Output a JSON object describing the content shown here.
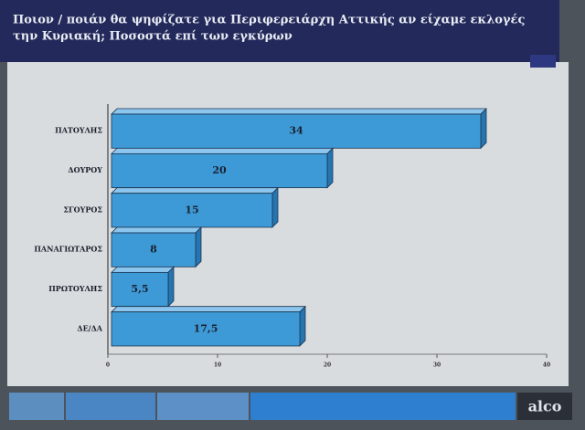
{
  "chart_data": {
    "type": "bar",
    "orientation": "horizontal",
    "title": "Ποιον / ποιάν θα ψηφίζατε για Περιφερειάρχη Αττικής αν είχαμε εκλογές την Κυριακή; Ποσοστά επί των εγκύρων",
    "title_lines": [
      "Ποιον / ποιάν θα ψηφίζατε για Περιφερειάρχη Αττικής αν είχαμε εκλογές",
      "την Κυριακή; Ποσοστά επί των εγκύρων"
    ],
    "categories": [
      "ΠΑΤΟΥΛΗΣ",
      "ΔΟΥΡΟΥ",
      "ΣΓΟΥΡΟΣ",
      "ΠΑΝΑΓΙΩΤΑΡΟΣ",
      "ΠΡΩΤΟΥΛΗΣ",
      "ΔΕ/ΔΑ"
    ],
    "values": [
      34,
      20,
      15,
      8,
      5.5,
      17.5
    ],
    "value_labels": [
      "34",
      "20",
      "15",
      "8",
      "5,5",
      "17,5"
    ],
    "color": "#3d9ad6",
    "xlim": [
      0,
      40
    ],
    "xticks": [
      0,
      10,
      20,
      30,
      40
    ],
    "logo": "alco"
  }
}
